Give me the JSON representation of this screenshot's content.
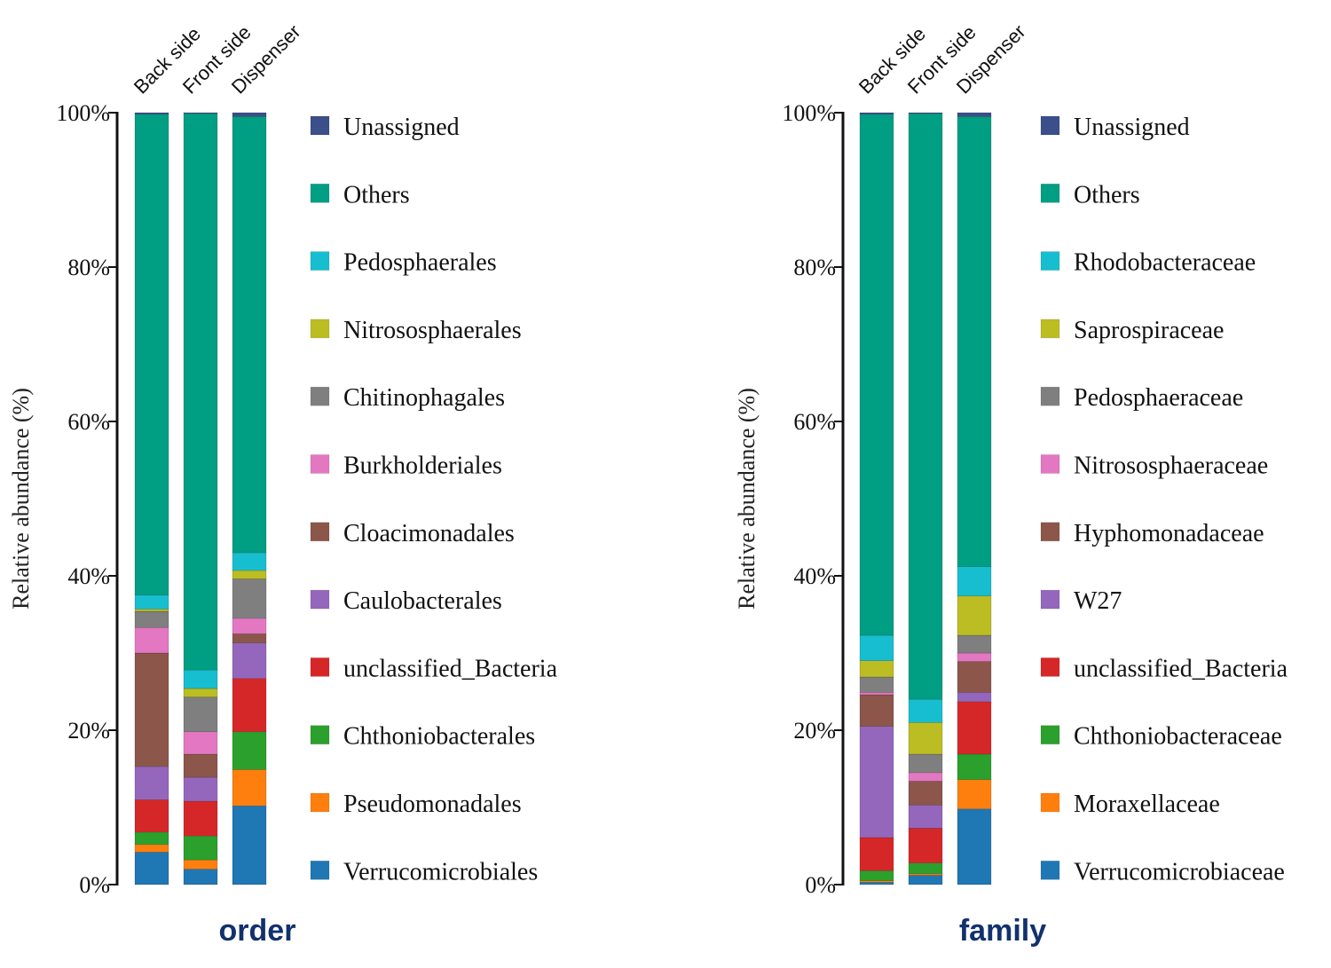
{
  "chart_data": [
    {
      "type": "bar",
      "stacked": true,
      "title": "order",
      "xlabel": "",
      "ylabel": "Relative abundance (%)",
      "ylim": [
        0,
        100
      ],
      "yticks": [
        "0%",
        "20%",
        "40%",
        "60%",
        "80%",
        "100%"
      ],
      "categories": [
        "Back side",
        "Front side",
        "Dispenser"
      ],
      "legend_position": "right",
      "series": [
        {
          "name": "Verrucomicrobiales",
          "color": "#1f77b4",
          "values": [
            4.2,
            2.0,
            10.2
          ]
        },
        {
          "name": "Pseudomonadales",
          "color": "#ff7f0e",
          "values": [
            1.0,
            1.2,
            4.7
          ]
        },
        {
          "name": "Chthoniobacterales",
          "color": "#2ca02c",
          "values": [
            1.6,
            3.1,
            4.9
          ]
        },
        {
          "name": "unclassified_Bacteria",
          "color": "#d62728",
          "values": [
            4.2,
            4.5,
            6.9
          ]
        },
        {
          "name": "Caulobacterales",
          "color": "#9467bd",
          "values": [
            4.3,
            3.1,
            4.6
          ]
        },
        {
          "name": "Cloacimonadales",
          "color": "#8c564b",
          "values": [
            14.7,
            3.0,
            1.2
          ]
        },
        {
          "name": "Burkholderiales",
          "color": "#e377c2",
          "values": [
            3.3,
            2.9,
            2.0
          ]
        },
        {
          "name": "Chitinophagales",
          "color": "#7f7f7f",
          "values": [
            2.1,
            4.5,
            5.1
          ]
        },
        {
          "name": "Nitrososphaerales",
          "color": "#bcbd22",
          "values": [
            0.3,
            1.1,
            1.1
          ]
        },
        {
          "name": "Pedosphaerales",
          "color": "#17becf",
          "values": [
            1.8,
            2.4,
            2.3
          ]
        },
        {
          "name": "Others",
          "color": "#009e82",
          "values": [
            62.3,
            72.1,
            56.5
          ]
        },
        {
          "name": "Unassigned",
          "color": "#3b4f8a",
          "values": [
            0.2,
            0.1,
            0.5
          ]
        }
      ]
    },
    {
      "type": "bar",
      "stacked": true,
      "title": "family",
      "xlabel": "",
      "ylabel": "Relative abundance (%)",
      "ylim": [
        0,
        100
      ],
      "yticks": [
        "0%",
        "20%",
        "40%",
        "60%",
        "80%",
        "100%"
      ],
      "categories": [
        "Back side",
        "Front side",
        "Dispenser"
      ],
      "legend_position": "right",
      "series": [
        {
          "name": "Verrucomicrobiaceae",
          "color": "#1f77b4",
          "values": [
            0.3,
            1.2,
            9.8
          ]
        },
        {
          "name": "Moraxellaceae",
          "color": "#ff7f0e",
          "values": [
            0.2,
            0.2,
            3.8
          ]
        },
        {
          "name": "Chthoniobacteraceae",
          "color": "#2ca02c",
          "values": [
            1.3,
            1.4,
            3.3
          ]
        },
        {
          "name": "unclassified_Bacteria",
          "color": "#d62728",
          "values": [
            4.3,
            4.5,
            6.8
          ]
        },
        {
          "name": "W27",
          "color": "#9467bd",
          "values": [
            14.4,
            3.0,
            1.2
          ]
        },
        {
          "name": "Hyphomonadaceae",
          "color": "#8c564b",
          "values": [
            4.1,
            3.1,
            4.0
          ]
        },
        {
          "name": "Nitrososphaeraceae",
          "color": "#e377c2",
          "values": [
            0.3,
            1.1,
            1.1
          ]
        },
        {
          "name": "Pedosphaeraceae",
          "color": "#7f7f7f",
          "values": [
            2.0,
            2.4,
            2.3
          ]
        },
        {
          "name": "Saprospiraceae",
          "color": "#bcbd22",
          "values": [
            2.1,
            4.1,
            5.1
          ]
        },
        {
          "name": "Rhodobacteraceae",
          "color": "#17becf",
          "values": [
            3.3,
            3.0,
            3.8
          ]
        },
        {
          "name": "Others",
          "color": "#009e82",
          "values": [
            67.5,
            75.9,
            58.3
          ]
        },
        {
          "name": "Unassigned",
          "color": "#3b4f8a",
          "values": [
            0.2,
            0.1,
            0.5
          ]
        }
      ]
    }
  ]
}
